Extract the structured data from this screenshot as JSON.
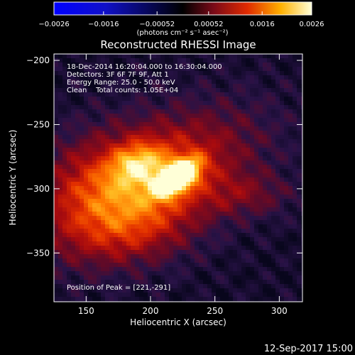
{
  "chart_data": {
    "type": "heatmap",
    "title": "Reconstructed RHESSI Image",
    "xlabel": "Heliocentric X (arcsec)",
    "ylabel": "Heliocentric Y (arcsec)",
    "xlim": [
      125,
      318
    ],
    "ylim": [
      -388,
      -195
    ],
    "x_ticks": [
      150,
      200,
      250,
      300
    ],
    "x_tick_labels": [
      "150",
      "200",
      "250",
      "300"
    ],
    "y_ticks": [
      -200,
      -250,
      -300,
      -350
    ],
    "y_tick_labels": [
      "−200",
      "−250",
      "−300",
      "−350"
    ],
    "colorbar": {
      "range": [
        -0.0026,
        0.0026
      ],
      "ticks": [
        -0.0026,
        -0.0016,
        -0.00052,
        0.00052,
        0.0016,
        0.0026
      ],
      "tick_labels": [
        "−0.0026",
        "−0.0016",
        "−0.00052",
        "0.00052",
        "0.0016",
        "0.0026"
      ],
      "unit_label": "(photons cm⁻² s⁻¹ asec⁻²)"
    },
    "annotations": [
      "18-Dec-2014 16:20:04.000 to 16:30:04.000",
      "Detectors: 3F 6F 7F 9F, Att 1",
      "Energy Range: 25.0 - 50.0 keV",
      "Clean    Total counts: 1.05E+04"
    ],
    "peak_label": "Position of Peak = [221,-291]",
    "peak": [
      221,
      -291
    ],
    "timestamp": "12-Sep-2017 15:00"
  }
}
